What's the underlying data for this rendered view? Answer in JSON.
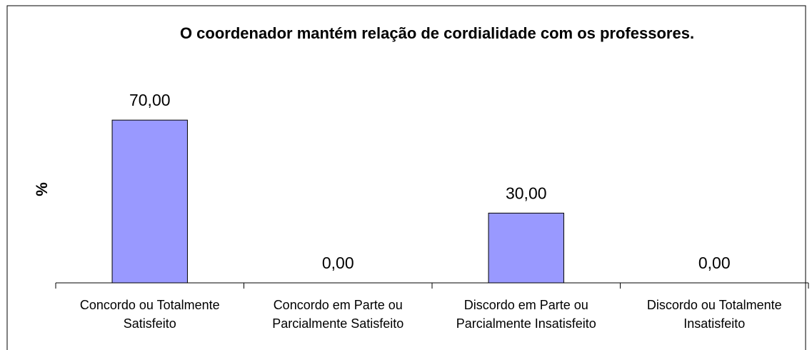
{
  "chart_data": {
    "type": "bar",
    "title": "O coordenador mantém relação de cordialidade com os professores.",
    "y_label": "%",
    "categories": [
      "Concordo ou Totalmente Satisfeito",
      "Concordo em Parte ou Parcialmente Satisfeito",
      "Discordo em Parte ou Parcialmente Insatisfeito",
      "Discordo ou Totalmente Insatisfeito"
    ],
    "values": [
      70,
      0,
      30,
      0
    ],
    "value_labels": [
      "70,00",
      "0,00",
      "30,00",
      "0,00"
    ],
    "color": "#9999ff",
    "ylim": [
      0,
      80
    ]
  }
}
